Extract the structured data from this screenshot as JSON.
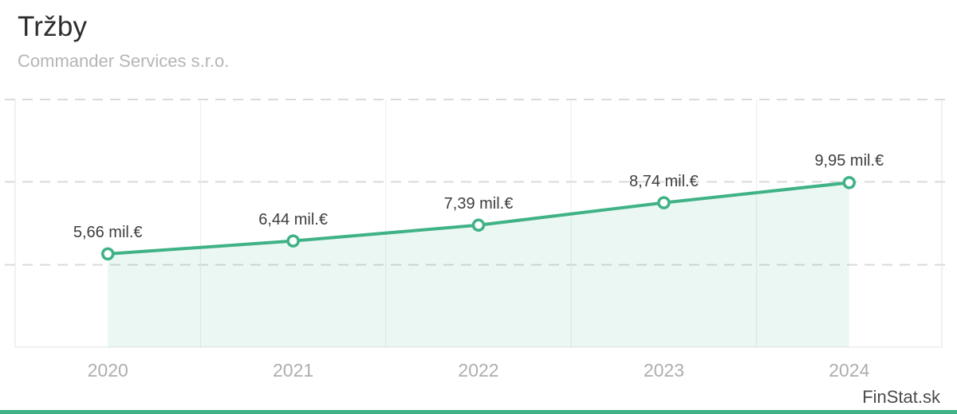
{
  "header": {
    "title": "Tržby",
    "subtitle": "Commander Services s.r.o."
  },
  "chart_data": {
    "type": "line",
    "title": "Tržby",
    "subtitle": "Commander Services s.r.o.",
    "categories": [
      "2020",
      "2021",
      "2022",
      "2023",
      "2024"
    ],
    "series": [
      {
        "name": "Tržby",
        "values": [
          5.66,
          6.44,
          7.39,
          8.74,
          9.95
        ]
      }
    ],
    "point_labels": [
      "5,66 mil.€",
      "6,44 mil.€",
      "7,39 mil.€",
      "8,74 mil.€",
      "9,95 mil.€"
    ],
    "unit": "mil.€",
    "xlabel": "",
    "ylabel": "",
    "ylim": [
      0,
      15
    ],
    "y_gridlines": [
      5,
      10,
      15
    ],
    "grid": "horizontal dashed, vertical solid band separators",
    "legend": "none",
    "area_fill": "between first and last point only"
  },
  "footer": {
    "watermark": "FinStat.sk"
  },
  "colors": {
    "line": "#3fb286",
    "marker_fill": "#ffffff",
    "area_fill": "rgba(63,178,134,0.10)",
    "accent_bar": "#3fb286",
    "grid_dashed": "#dadada",
    "grid_vertical": "#ececec",
    "plot_border": "#e3e3e3",
    "title": "#2d2d2d",
    "subtitle": "#b5b5b5",
    "data_label": "#3e3e3e",
    "axis_label": "#aeaeae",
    "watermark": "#4a4a4a"
  }
}
